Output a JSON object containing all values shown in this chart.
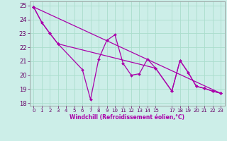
{
  "xlabel": "Windchill (Refroidissement éolien,°C)",
  "background_color": "#cceee8",
  "grid_color": "#aaddcc",
  "line_color": "#aa00aa",
  "xlim": [
    -0.5,
    23.5
  ],
  "ylim": [
    17.8,
    25.3
  ],
  "yticks": [
    18,
    19,
    20,
    21,
    22,
    23,
    24,
    25
  ],
  "xtick_positions": [
    0,
    1,
    2,
    3,
    4,
    5,
    6,
    7,
    8,
    9,
    10,
    11,
    12,
    13,
    14,
    15,
    17,
    18,
    19,
    20,
    21,
    22,
    23
  ],
  "xtick_labels": [
    "0",
    "1",
    "2",
    "3",
    "4",
    "5",
    "6",
    "7",
    "8",
    "9",
    "10",
    "11",
    "12",
    "13",
    "14",
    "15",
    "17",
    "18",
    "19",
    "20",
    "21",
    "22",
    "23"
  ],
  "line1_x": [
    0,
    1,
    2,
    3,
    6,
    7,
    8,
    9,
    10,
    11,
    12,
    13,
    14,
    15,
    17,
    18,
    19,
    20,
    21,
    22,
    23
  ],
  "line1_y": [
    24.9,
    23.8,
    23.0,
    22.25,
    20.4,
    18.25,
    21.15,
    22.5,
    22.9,
    20.85,
    20.0,
    20.1,
    21.15,
    20.5,
    18.85,
    21.05,
    20.2,
    19.2,
    19.05,
    18.85,
    18.7
  ],
  "line2_x": [
    0,
    1,
    2,
    3,
    15,
    17,
    18,
    19,
    20,
    21,
    22,
    23
  ],
  "line2_y": [
    24.9,
    23.8,
    23.0,
    22.25,
    20.5,
    18.85,
    21.05,
    20.2,
    19.2,
    19.05,
    18.85,
    18.7
  ],
  "line3_x": [
    0,
    23
  ],
  "line3_y": [
    24.9,
    18.7
  ]
}
